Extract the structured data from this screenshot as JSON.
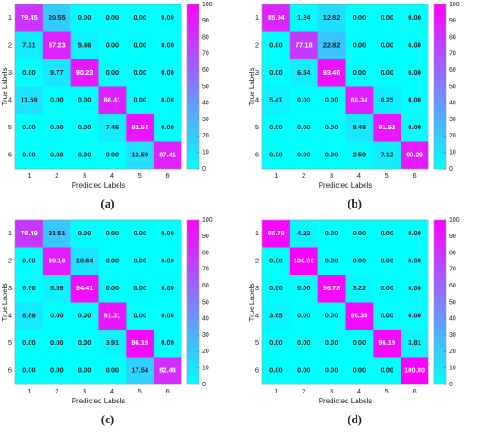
{
  "chart_data": [
    {
      "type": "heatmap",
      "caption": "(a)",
      "xlabel": "Predicted Labels",
      "ylabel": "True Labels",
      "x": [
        "1",
        "2",
        "3",
        "4",
        "5",
        "6"
      ],
      "y": [
        "1",
        "2",
        "3",
        "4",
        "5",
        "6"
      ],
      "values": [
        [
          79.45,
          20.55,
          0,
          0,
          0,
          0
        ],
        [
          7.31,
          87.23,
          5.46,
          0,
          0,
          0
        ],
        [
          0,
          9.77,
          90.23,
          0,
          0,
          0
        ],
        [
          11.59,
          0,
          0,
          88.41,
          0,
          0
        ],
        [
          0,
          0,
          0,
          7.46,
          92.54,
          0
        ],
        [
          0,
          0,
          0,
          0,
          12.59,
          87.41
        ]
      ],
      "value_labels": [
        [
          "79.45",
          "20.55",
          "0.00",
          "0.00",
          "0.00",
          "0.00"
        ],
        [
          "7.31",
          "87.23",
          "5.46",
          "0.00",
          "0.00",
          "0.00"
        ],
        [
          "0.00",
          "9.77",
          "90.23",
          "0.00",
          "0.00",
          "0.00"
        ],
        [
          "11.59",
          "0.00",
          "0.00",
          "88.41",
          "0.00",
          "0.00"
        ],
        [
          "0.00",
          "0.00",
          "0.00",
          "7.46",
          "92.54",
          "0.00"
        ],
        [
          "0.00",
          "0.00",
          "0.00",
          "0.00",
          "12.59",
          "87.41"
        ]
      ],
      "colormap": [
        "#00ffff",
        "#ff00ff"
      ],
      "clim": [
        0,
        100
      ],
      "cticks": [
        0,
        10,
        20,
        30,
        40,
        50,
        60,
        70,
        80,
        90,
        100
      ]
    },
    {
      "type": "heatmap",
      "caption": "(b)",
      "xlabel": "Predicted Labels",
      "ylabel": "True Labels",
      "x": [
        "1",
        "2",
        "3",
        "4",
        "5",
        "6"
      ],
      "y": [
        "1",
        "2",
        "3",
        "4",
        "5",
        "6"
      ],
      "values": [
        [
          85.94,
          1.24,
          12.82,
          0,
          0,
          0
        ],
        [
          0,
          77.18,
          22.82,
          0,
          0,
          0
        ],
        [
          0,
          6.54,
          93.46,
          0,
          0,
          0
        ],
        [
          5.41,
          0,
          0,
          88.34,
          6.25,
          0
        ],
        [
          0,
          0,
          0,
          8.48,
          91.52,
          0
        ],
        [
          0,
          0,
          0,
          2.59,
          7.12,
          90.29
        ]
      ],
      "value_labels": [
        [
          "85.94",
          "1.24",
          "12.82",
          "0.00",
          "0.00",
          "0.00"
        ],
        [
          "0.00",
          "77.18",
          "22.82",
          "0.00",
          "0.00",
          "0.00"
        ],
        [
          "0.00",
          "6.54",
          "93.46",
          "0.00",
          "0.00",
          "0.00"
        ],
        [
          "5.41",
          "0.00",
          "0.00",
          "88.34",
          "6.25",
          "0.00"
        ],
        [
          "0.00",
          "0.00",
          "0.00",
          "8.48",
          "91.52",
          "0.00"
        ],
        [
          "0.00",
          "0.00",
          "0.00",
          "2.59",
          "7.12",
          "90.29"
        ]
      ],
      "colormap": [
        "#00ffff",
        "#ff00ff"
      ],
      "clim": [
        0,
        100
      ],
      "cticks": [
        0,
        10,
        20,
        30,
        40,
        50,
        60,
        70,
        80,
        90,
        100
      ]
    },
    {
      "type": "heatmap",
      "caption": "(c)",
      "xlabel": "Predicted Labels",
      "ylabel": "True Labels",
      "x": [
        "1",
        "2",
        "3",
        "4",
        "5",
        "6"
      ],
      "y": [
        "1",
        "2",
        "3",
        "4",
        "5",
        "6"
      ],
      "values": [
        [
          78.49,
          21.51,
          0,
          0,
          0,
          0
        ],
        [
          0,
          89.16,
          10.84,
          0,
          0,
          0
        ],
        [
          0,
          5.59,
          94.41,
          0,
          0,
          0
        ],
        [
          8.69,
          0,
          0,
          91.31,
          0,
          0
        ],
        [
          0,
          0,
          0,
          3.91,
          96.19,
          0
        ],
        [
          0,
          0,
          0,
          0,
          17.54,
          82.46
        ]
      ],
      "value_labels": [
        [
          "78.49",
          "21.51",
          "0.00",
          "0.00",
          "0.00",
          "0.00"
        ],
        [
          "0.00",
          "89.16",
          "10.84",
          "0.00",
          "0.00",
          "0.00"
        ],
        [
          "0.00",
          "5.59",
          "94.41",
          "0.00",
          "0.00",
          "0.00"
        ],
        [
          "8.69",
          "0.00",
          "0.00",
          "91.31",
          "0.00",
          "0.00"
        ],
        [
          "0.00",
          "0.00",
          "0.00",
          "3.91",
          "96.19",
          "0.00"
        ],
        [
          "0.00",
          "0.00",
          "0.00",
          "0.00",
          "17.54",
          "82.46"
        ]
      ],
      "colormap": [
        "#00ffff",
        "#ff00ff"
      ],
      "clim": [
        0,
        100
      ],
      "cticks": [
        0,
        10,
        20,
        30,
        40,
        50,
        60,
        70,
        80,
        90,
        100
      ]
    },
    {
      "type": "heatmap",
      "caption": "(d)",
      "xlabel": "Predicted Labels",
      "ylabel": "True Labels",
      "x": [
        "1",
        "2",
        "3",
        "4",
        "5",
        "6"
      ],
      "y": [
        "1",
        "2",
        "3",
        "4",
        "5",
        "6"
      ],
      "values": [
        [
          95.78,
          4.22,
          0,
          0,
          0,
          0
        ],
        [
          0,
          100,
          0,
          0,
          0,
          0
        ],
        [
          0,
          0,
          96.78,
          3.22,
          0,
          0
        ],
        [
          3.65,
          0,
          0,
          96.35,
          0,
          0
        ],
        [
          0,
          0,
          0,
          0,
          96.19,
          3.81
        ],
        [
          0,
          0,
          0,
          0,
          0,
          100
        ]
      ],
      "value_labels": [
        [
          "95.78",
          "4.22",
          "0.00",
          "0.00",
          "0.00",
          "0.00"
        ],
        [
          "0.00",
          "100.00",
          "0.00",
          "0.00",
          "0.00",
          "0.00"
        ],
        [
          "0.00",
          "0.00",
          "96.78",
          "3.22",
          "0.00",
          "0.00"
        ],
        [
          "3.65",
          "0.00",
          "0.00",
          "96.35",
          "0.00",
          "0.00"
        ],
        [
          "0.00",
          "0.00",
          "0.00",
          "0.00",
          "96.19",
          "3.81"
        ],
        [
          "0.00",
          "0.00",
          "0.00",
          "0.00",
          "0.00",
          "100.00"
        ]
      ],
      "colormap": [
        "#00ffff",
        "#ff00ff"
      ],
      "clim": [
        0,
        100
      ],
      "cticks": [
        0,
        10,
        20,
        30,
        40,
        50,
        60,
        70,
        80,
        90,
        100
      ]
    }
  ]
}
